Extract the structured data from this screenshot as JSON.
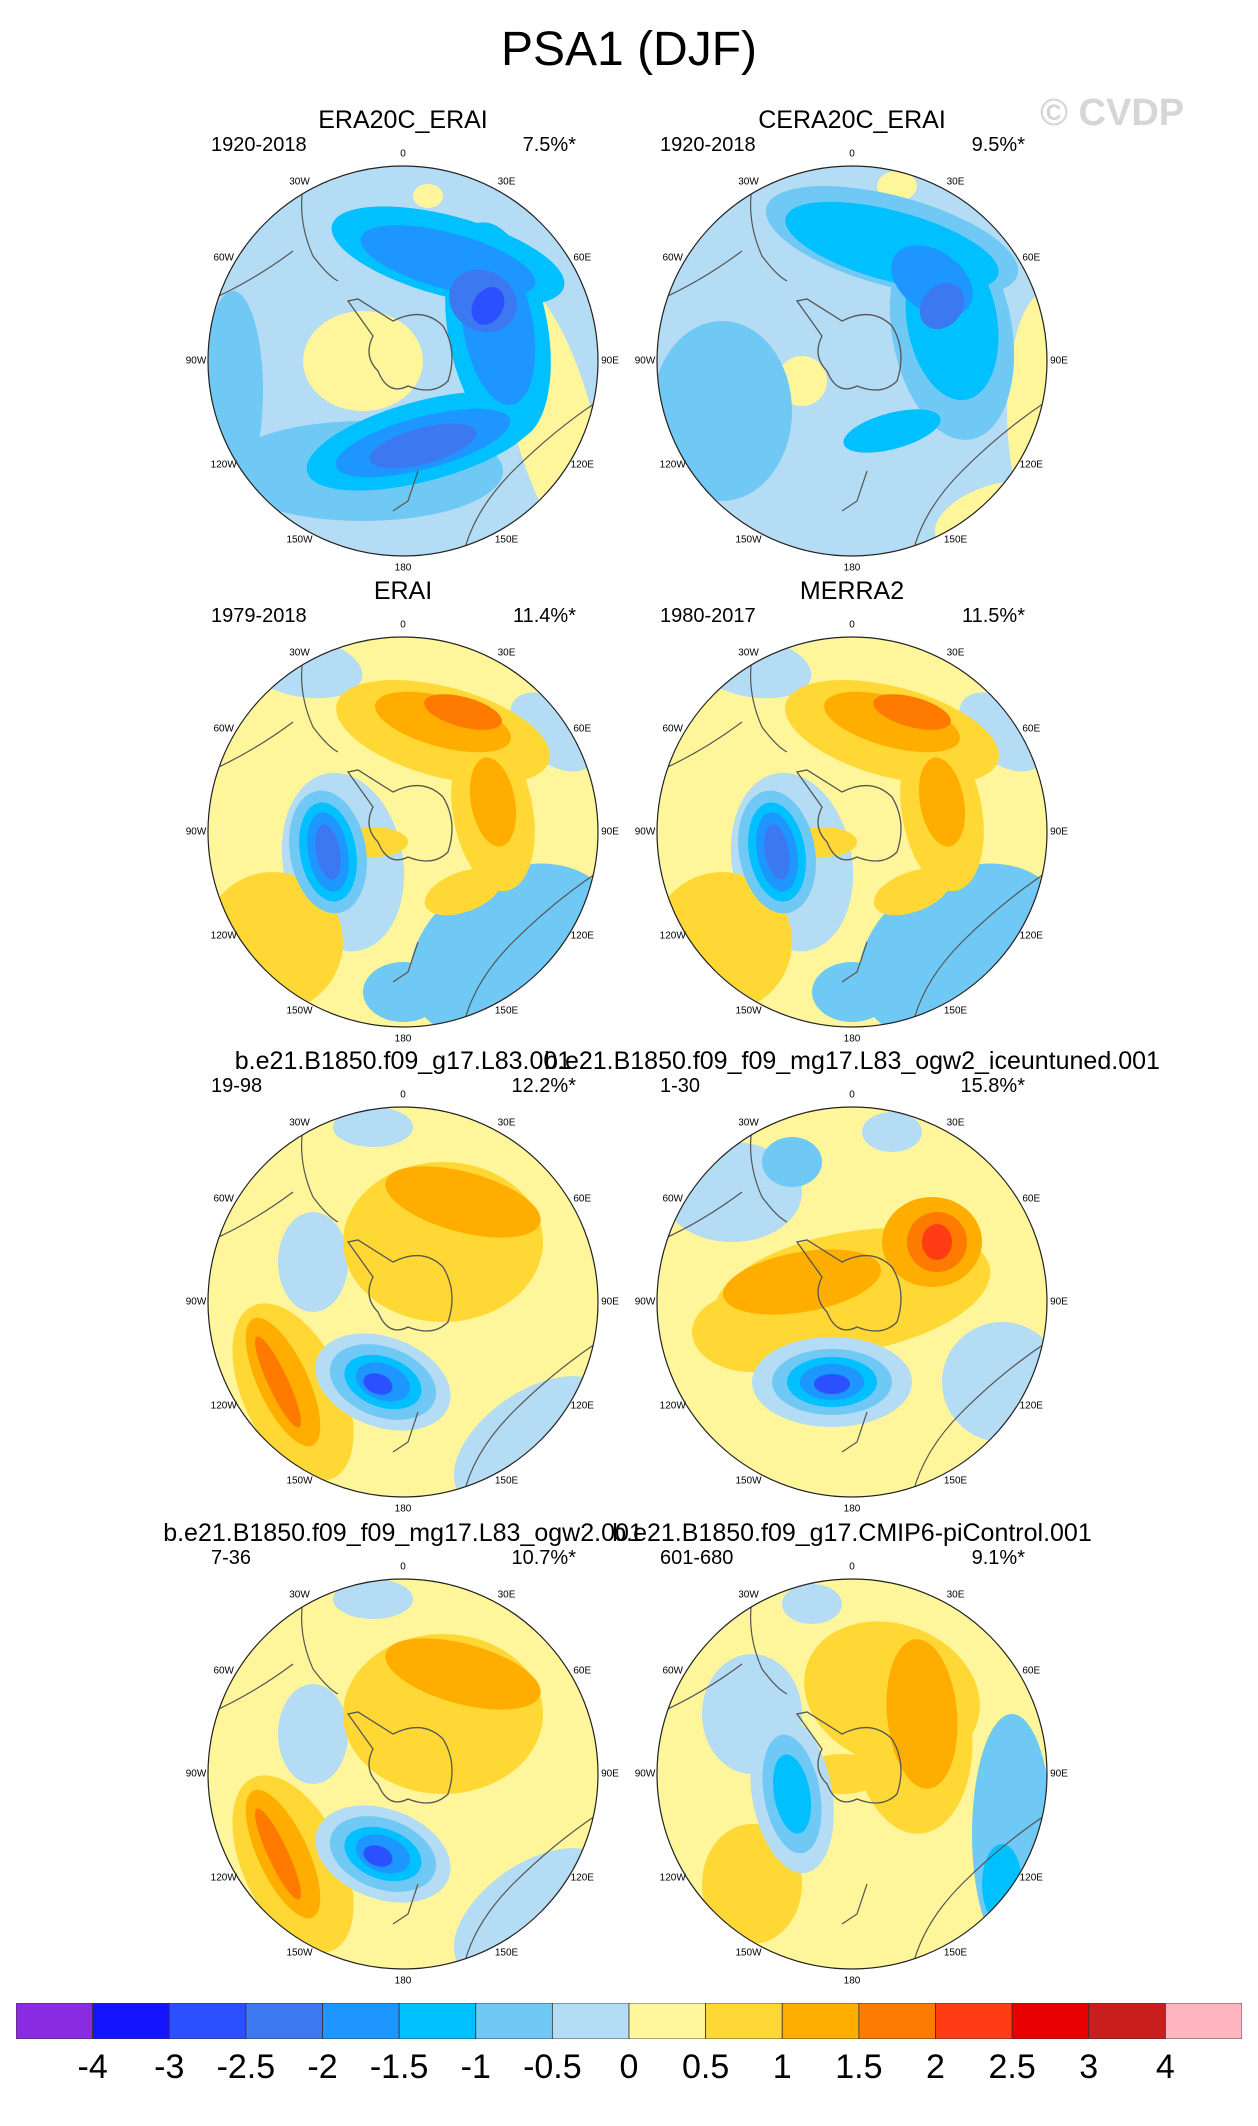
{
  "title": "PSA1 (DJF)",
  "watermark": "© CVDP",
  "lon_labels": [
    "0",
    "30E",
    "60E",
    "90E",
    "120E",
    "150E",
    "180",
    "150W",
    "120W",
    "90W",
    "60W",
    "30W"
  ],
  "panels": [
    {
      "title": "ERA20C_ERAI",
      "years": "1920-2018",
      "pct": "7.5%*",
      "pattern": "A"
    },
    {
      "title": "CERA20C_ERAI",
      "years": "1920-2018",
      "pct": "9.5%*",
      "pattern": "B"
    },
    {
      "title": "ERAI",
      "years": "1979-2018",
      "pct": "11.4%*",
      "pattern": "C"
    },
    {
      "title": "MERRA2",
      "years": "1980-2017",
      "pct": "11.5%*",
      "pattern": "C"
    },
    {
      "title": "b.e21.B1850.f09_g17.L83.001",
      "years": "19-98",
      "pct": "12.2%*",
      "pattern": "D"
    },
    {
      "title": "b.e21.B1850.f09_f09_mg17.L83_ogw2_iceuntuned.001",
      "years": "1-30",
      "pct": "15.8%*",
      "pattern": "E"
    },
    {
      "title": "b.e21.B1850.f09_f09_mg17.L83_ogw2.001",
      "years": "7-36",
      "pct": "10.7%*",
      "pattern": "D"
    },
    {
      "title": "b.e21.B1850.f09_g17.CMIP6-piControl.001",
      "years": "601-680",
      "pct": "9.1%*",
      "pattern": "F"
    }
  ],
  "colorbar": {
    "labels": [
      "-4",
      "-3",
      "-2.5",
      "-2",
      "-1.5",
      "-1",
      "-0.5",
      "0",
      "0.5",
      "1",
      "1.5",
      "2",
      "2.5",
      "3",
      "4"
    ],
    "colors": [
      "#8a2be2",
      "#1414ff",
      "#2a50ff",
      "#3c78f0",
      "#1e96ff",
      "#00c0ff",
      "#70c8f4",
      "#b4dcf4",
      "#fff59a",
      "#ffd835",
      "#ffae00",
      "#ff7a00",
      "#ff3c14",
      "#e60000",
      "#c81e1e",
      "#ffb6c1"
    ]
  },
  "chart_data": {
    "type": "heatmap",
    "title": "PSA1 (DJF)",
    "projection": "south polar stereographic",
    "colorbar_levels": [
      -4,
      -3,
      -2.5,
      -2,
      -1.5,
      -1,
      -0.5,
      0,
      0.5,
      1,
      1.5,
      2,
      2.5,
      3,
      4
    ],
    "series": [
      {
        "name": "ERA20C_ERAI",
        "years": "1920-2018",
        "pct_variance": 7.5,
        "min": -2.5,
        "max": 1.0
      },
      {
        "name": "CERA20C_ERAI",
        "years": "1920-2018",
        "pct_variance": 9.5,
        "min": -2.0,
        "max": 1.0
      },
      {
        "name": "ERAI",
        "years": "1979-2018",
        "pct_variance": 11.4,
        "min": -2.5,
        "max": 1.5
      },
      {
        "name": "MERRA2",
        "years": "1980-2017",
        "pct_variance": 11.5,
        "min": -2.5,
        "max": 1.5
      },
      {
        "name": "b.e21.B1850.f09_g17.L83.001",
        "years": "19-98",
        "pct_variance": 12.2,
        "min": -3.0,
        "max": 1.5
      },
      {
        "name": "b.e21.B1850.f09_f09_mg17.L83_ogw2_iceuntuned.001",
        "years": "1-30",
        "pct_variance": 15.8,
        "min": -3.0,
        "max": 2.5
      },
      {
        "name": "b.e21.B1850.f09_f09_mg17.L83_ogw2.001",
        "years": "7-36",
        "pct_variance": 10.7,
        "min": -2.5,
        "max": 2.0
      },
      {
        "name": "b.e21.B1850.f09_g17.CMIP6-piControl.001",
        "years": "601-680",
        "pct_variance": 9.1,
        "min": -2.0,
        "max": 1.5
      }
    ]
  }
}
